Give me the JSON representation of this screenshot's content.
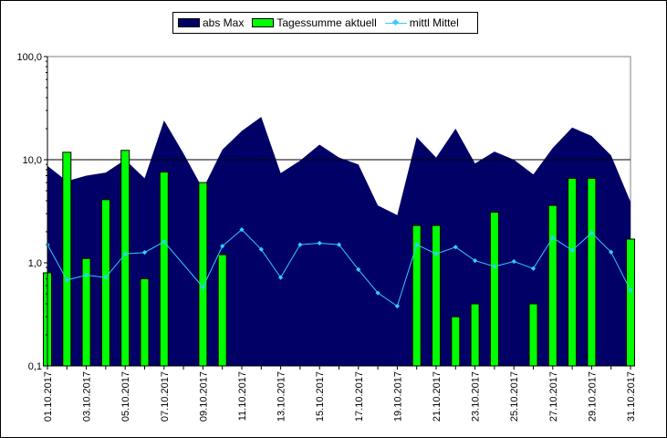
{
  "chart_data": {
    "type": "area+bar+line",
    "yscale": "log",
    "ylim": [
      0.1,
      100
    ],
    "y_tick_labels": [
      "0,1",
      "1,0",
      "10,0",
      "100,0"
    ],
    "grid": "horizontal at 10,0",
    "legend_position": "top",
    "categories": [
      "01.10.2017",
      "02.10.2017",
      "03.10.2017",
      "04.10.2017",
      "05.10.2017",
      "06.10.2017",
      "07.10.2017",
      "08.10.2017",
      "09.10.2017",
      "10.10.2017",
      "11.10.2017",
      "12.10.2017",
      "13.10.2017",
      "14.10.2017",
      "15.10.2017",
      "16.10.2017",
      "17.10.2017",
      "18.10.2017",
      "19.10.2017",
      "20.10.2017",
      "21.10.2017",
      "22.10.2017",
      "23.10.2017",
      "24.10.2017",
      "25.10.2017",
      "26.10.2017",
      "27.10.2017",
      "28.10.2017",
      "29.10.2017",
      "30.10.2017",
      "31.10.2017"
    ],
    "x_tick_labels": [
      "01.10.2017",
      "03.10.2017",
      "05.10.2017",
      "07.10.2017",
      "09.10.2017",
      "11.10.2017",
      "13.10.2017",
      "15.10.2017",
      "17.10.2017",
      "19.10.2017",
      "21.10.2017",
      "23.10.2017",
      "25.10.2017",
      "27.10.2017",
      "29.10.2017",
      "31.10.2017"
    ],
    "series": [
      {
        "name": "abs Max",
        "type": "area",
        "color": "#000066",
        "values": [
          8.7,
          6.2,
          7.0,
          7.5,
          10.0,
          6.6,
          24.0,
          11.5,
          5.2,
          12.5,
          19.0,
          26.0,
          7.4,
          9.8,
          14.0,
          10.5,
          9.0,
          3.6,
          2.9,
          16.5,
          10.5,
          20.0,
          9.2,
          12.0,
          10.0,
          7.2,
          13.0,
          20.5,
          17.0,
          11.0,
          3.9
        ]
      },
      {
        "name": "Tagessumme aktuell",
        "type": "bar",
        "color": "#00ff00",
        "values": [
          0.8,
          11.8,
          1.1,
          4.1,
          12.3,
          0.7,
          7.6,
          null,
          6.0,
          1.2,
          null,
          null,
          null,
          null,
          null,
          null,
          null,
          null,
          null,
          2.3,
          2.3,
          0.3,
          0.4,
          3.1,
          null,
          0.4,
          3.6,
          6.6,
          6.6,
          null,
          1.7
        ]
      },
      {
        "name": "mittl Mittel",
        "type": "line",
        "color": "#33ccff",
        "values": [
          1.5,
          0.68,
          0.76,
          0.72,
          1.22,
          1.26,
          1.6,
          null,
          0.58,
          1.45,
          2.1,
          1.35,
          0.72,
          1.5,
          1.55,
          1.5,
          0.86,
          0.51,
          0.38,
          1.5,
          1.22,
          1.42,
          1.05,
          0.92,
          1.03,
          0.88,
          1.75,
          1.32,
          1.95,
          1.27,
          0.54
        ]
      }
    ]
  }
}
